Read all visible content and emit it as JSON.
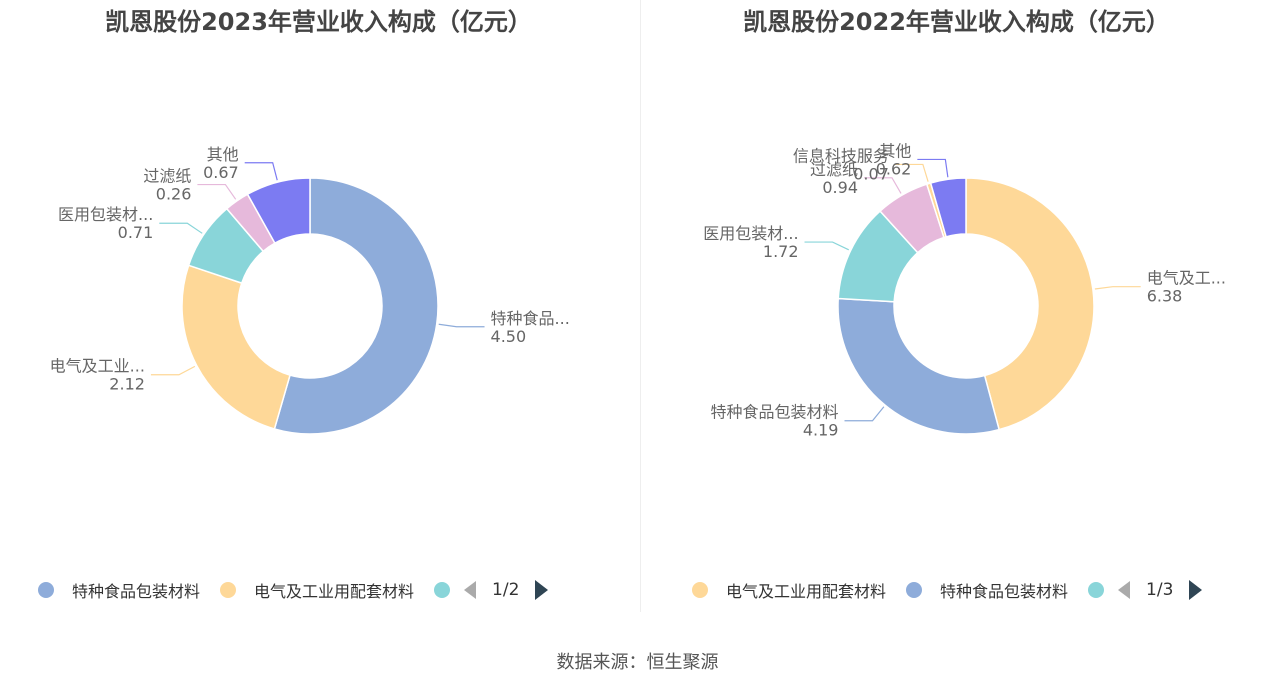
{
  "source": "数据来源：恒生聚源",
  "colors": {
    "blue": "#8eacda",
    "yellow": "#fed898",
    "teal": "#89d5d9",
    "pink": "#e6b9db",
    "purple": "#7c7bf2"
  },
  "chart_data": [
    {
      "type": "pie",
      "variant": "donut",
      "title": "凯恩股份2023年营业收入构成（亿元）",
      "slices": [
        {
          "name": "特种食品包装材料",
          "label": "特种食品...",
          "value": 4.5,
          "color": "#8eacda"
        },
        {
          "name": "电气及工业用配套材料",
          "label": "电气及工业...",
          "value": 2.12,
          "color": "#fed898"
        },
        {
          "name": "医用包装材料",
          "label": "医用包装材...",
          "value": 0.71,
          "color": "#89d5d9"
        },
        {
          "name": "过滤纸",
          "label": "过滤纸",
          "value": 0.26,
          "color": "#e6b9db"
        },
        {
          "name": "其他",
          "label": "其他",
          "value": 0.67,
          "color": "#7c7bf2"
        }
      ],
      "legend": {
        "items": [
          {
            "label": "特种食品包装材料",
            "color": "#8eacda"
          },
          {
            "label": "电气及工业用配套材料",
            "color": "#fed898"
          },
          {
            "label": "",
            "color": "#89d5d9"
          }
        ],
        "page": "1/2",
        "placement": "bottom"
      }
    },
    {
      "type": "pie",
      "variant": "donut",
      "title": "凯恩股份2022年营业收入构成（亿元）",
      "slices": [
        {
          "name": "电气及工业用配套材料",
          "label": "电气及工...",
          "value": 6.38,
          "color": "#fed898"
        },
        {
          "name": "特种食品包装材料",
          "label": "特种食品包装材料",
          "value": 4.19,
          "color": "#8eacda"
        },
        {
          "name": "医用包装材料",
          "label": "医用包装材...",
          "value": 1.72,
          "color": "#89d5d9"
        },
        {
          "name": "过滤纸",
          "label": "过滤纸",
          "value": 0.94,
          "color": "#e6b9db"
        },
        {
          "name": "信息科技服务",
          "label": "信息科技服务",
          "value": 0.07,
          "color": "#fed898"
        },
        {
          "name": "其他",
          "label": "其他",
          "value": 0.62,
          "color": "#7c7bf2"
        }
      ],
      "legend": {
        "items": [
          {
            "label": "电气及工业用配套材料",
            "color": "#fed898"
          },
          {
            "label": "特种食品包装材料",
            "color": "#8eacda"
          },
          {
            "label": "",
            "color": "#89d5d9"
          }
        ],
        "page": "1/3",
        "placement": "bottom"
      }
    }
  ]
}
